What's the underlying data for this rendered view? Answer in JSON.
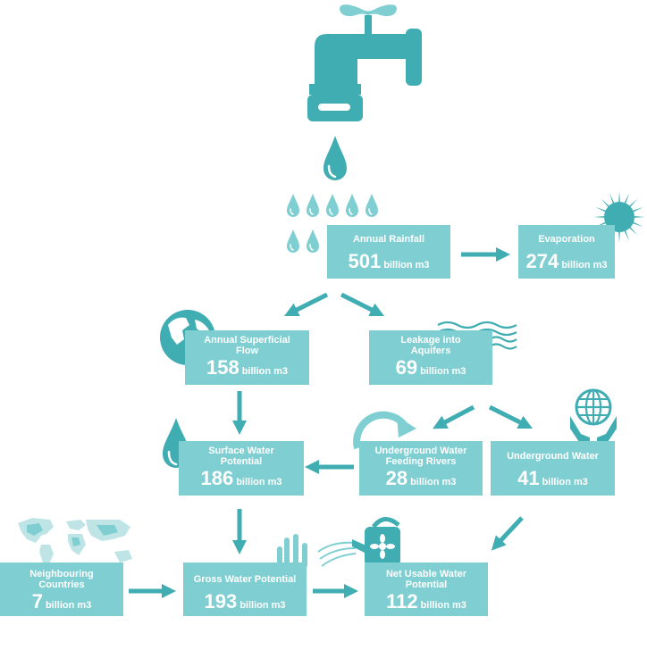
{
  "colors": {
    "box": "#7fcfd2",
    "icon": "#3fadb2",
    "arrow": "#3fadb2",
    "text": "#ffffff"
  },
  "unit": "billion m3",
  "nodes": {
    "rainfall": {
      "label": "Annual Rainfall",
      "value": "501"
    },
    "evaporation": {
      "label": "Evaporation",
      "value": "274"
    },
    "superficial": {
      "label": "Annual Superficial Flow",
      "value": "158"
    },
    "leakage": {
      "label": "Leakage into Aquifers",
      "value": "69"
    },
    "surface": {
      "label": "Surface Water Potential",
      "value": "186"
    },
    "feeding": {
      "label": "Underground Water Feeding Rivers",
      "value": "28"
    },
    "underground": {
      "label": "Underground Water",
      "value": "41"
    },
    "neighbouring": {
      "label": "Neighbouring Countries",
      "value": "7"
    },
    "gross": {
      "label": "Gross Water Potential",
      "value": "193"
    },
    "net": {
      "label": "Net Usable Water Potential",
      "value": "112"
    }
  },
  "icons": [
    "faucet-icon",
    "water-drop-icon",
    "rain-drops-icon",
    "sun-icon",
    "globe-icon",
    "water-waves-icon",
    "cycle-arrow-icon",
    "hands-globe-icon",
    "world-map-icon",
    "plant-icon",
    "watering-can-icon"
  ]
}
